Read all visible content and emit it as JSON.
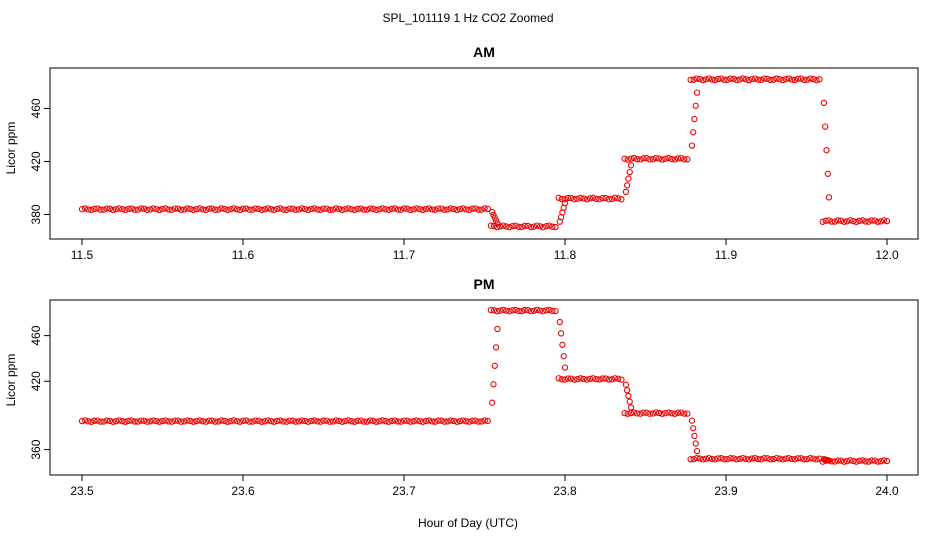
{
  "figure": {
    "title": "SPL_101119  1 Hz CO2 Zoomed",
    "xlabel": "Hour of Day (UTC)"
  },
  "colors": {
    "points": "#ee0000",
    "axes": "#000000"
  },
  "chart_data": [
    {
      "type": "scatter",
      "title": "AM",
      "xlabel": "Hour of Day (UTC)",
      "ylabel": "Licor ppm",
      "xlim": [
        11.5,
        12.0
      ],
      "ylim": [
        366,
        486
      ],
      "xticks": [
        "11.5",
        "11.6",
        "11.7",
        "11.8",
        "11.9",
        "12.0"
      ],
      "yticks": [
        "380",
        "420",
        "460"
      ],
      "steps": [
        {
          "x_start": 11.5,
          "x_end": 11.754,
          "y": 384
        },
        {
          "x_start": 11.754,
          "x_end": 11.796,
          "y": 371
        },
        {
          "x_start": 11.796,
          "x_end": 11.837,
          "y": 392
        },
        {
          "x_start": 11.837,
          "x_end": 11.878,
          "y": 422
        },
        {
          "x_start": 11.878,
          "x_end": 11.96,
          "y": 482
        },
        {
          "x_start": 11.96,
          "x_end": 12.0,
          "y": 375
        }
      ]
    },
    {
      "type": "scatter",
      "title": "PM",
      "xlabel": "Hour of Day (UTC)",
      "ylabel": "Licor ppm",
      "xlim": [
        23.5,
        24.0
      ],
      "ylim": [
        343,
        486
      ],
      "xticks": [
        "23.5",
        "23.6",
        "23.7",
        "23.8",
        "23.9",
        "24.0"
      ],
      "yticks": [
        "360",
        "420",
        "460"
      ],
      "steps": [
        {
          "x_start": 23.5,
          "x_end": 23.754,
          "y": 385
        },
        {
          "x_start": 23.754,
          "x_end": 23.796,
          "y": 482
        },
        {
          "x_start": 23.796,
          "x_end": 23.837,
          "y": 422
        },
        {
          "x_start": 23.837,
          "x_end": 23.878,
          "y": 392
        },
        {
          "x_start": 23.878,
          "x_end": 23.96,
          "y": 352
        },
        {
          "x_start": 23.96,
          "x_end": 24.0,
          "y": 350
        }
      ]
    }
  ]
}
